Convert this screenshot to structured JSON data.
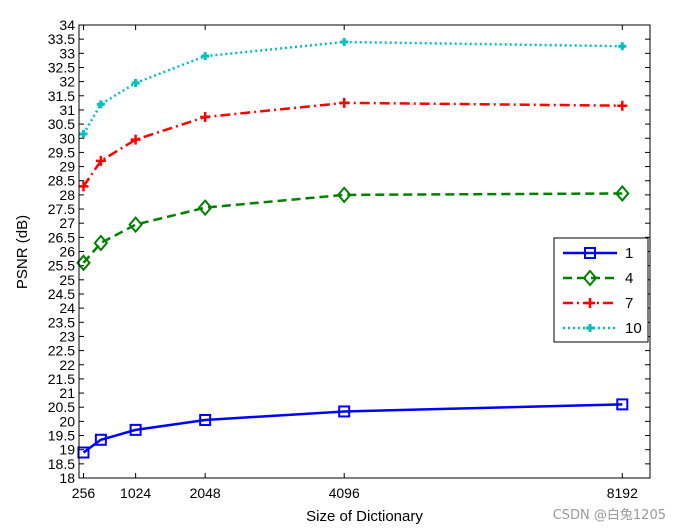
{
  "chart_data": {
    "type": "line",
    "xlabel": "Size of Dictionary",
    "ylabel": "PSNR (dB)",
    "xlim": [
      190,
      8600
    ],
    "ylim": [
      18,
      34
    ],
    "x_ticks": [
      256,
      1024,
      2048,
      4096,
      8192
    ],
    "x_tick_labels": [
      "256",
      "1024",
      "2048",
      "4096",
      "8192"
    ],
    "y_ticks": [
      18,
      18.5,
      19,
      19.5,
      20,
      20.5,
      21,
      21.5,
      22,
      22.5,
      23,
      23.5,
      24,
      24.5,
      25,
      25.5,
      26,
      26.5,
      27,
      27.5,
      28,
      28.5,
      29,
      29.5,
      30,
      30.5,
      31,
      31.5,
      32,
      32.5,
      33,
      33.5,
      34
    ],
    "y_tick_labels": [
      "18",
      "18.5",
      "19",
      "19.5",
      "20",
      "20.5",
      "21",
      "21.5",
      "22",
      "22.5",
      "23",
      "23.5",
      "24",
      "24.5",
      "25",
      "25.5",
      "26",
      "26.5",
      "27",
      "27.5",
      "28",
      "28.5",
      "29",
      "29.5",
      "30",
      "30.5",
      "31",
      "31.5",
      "32",
      "32.5",
      "33",
      "33.5",
      "34"
    ],
    "grid": false,
    "legend_position": "right",
    "x": [
      256,
      512,
      1024,
      2048,
      4096,
      8192
    ],
    "series": [
      {
        "name": "1",
        "color": "#0000ff",
        "dash": "solid",
        "marker": "square",
        "values": [
          18.9,
          19.35,
          19.7,
          20.05,
          20.35,
          20.6
        ]
      },
      {
        "name": "4",
        "color": "#008000",
        "dash": "dashed",
        "marker": "diamond",
        "values": [
          25.6,
          26.3,
          26.95,
          27.55,
          28.0,
          28.05
        ]
      },
      {
        "name": "7",
        "color": "#ff0000",
        "dash": "dashdot",
        "marker": "plus",
        "values": [
          28.3,
          29.2,
          29.95,
          30.75,
          31.25,
          31.15
        ]
      },
      {
        "name": "10",
        "color": "#00bfbf",
        "dash": "dotted",
        "marker": "cross",
        "values": [
          30.15,
          31.2,
          31.95,
          32.9,
          33.4,
          33.25
        ]
      }
    ]
  },
  "watermark": "CSDN @白兔1205"
}
